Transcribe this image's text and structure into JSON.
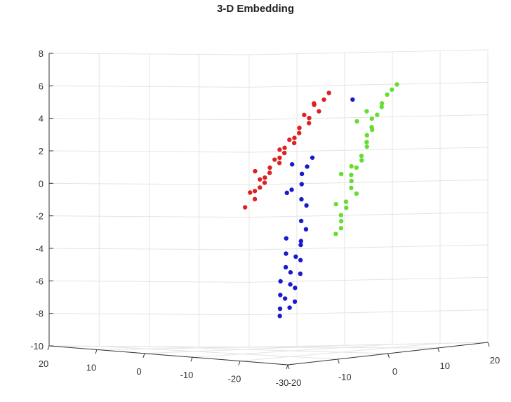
{
  "chart_data": {
    "type": "scatter3d",
    "title": "3-D Embedding",
    "xlabel": "",
    "ylabel": "",
    "zlabel": "",
    "grid": true,
    "xlim": [
      -30,
      20
    ],
    "ylim": [
      -20,
      20
    ],
    "zlim": [
      -10,
      8
    ],
    "x_ticks": [
      "20",
      "10",
      "0",
      "-10",
      "-20",
      "-30"
    ],
    "y_ticks": [
      "-20",
      "-10",
      "0",
      "10",
      "20"
    ],
    "z_ticks": [
      "8",
      "6",
      "4",
      "2",
      "0",
      "-2",
      "-4",
      "-6",
      "-8",
      "-10"
    ],
    "series": [
      {
        "color": "#66dd33",
        "points": [
          [
            -12,
            19,
            6.0
          ],
          [
            -12,
            18,
            5.7
          ],
          [
            -11,
            18,
            5.4
          ],
          [
            -12,
            16,
            4.9
          ],
          [
            -13,
            15,
            4.7
          ],
          [
            -11,
            16,
            4.2
          ],
          [
            -12,
            14,
            4.0
          ],
          [
            -13,
            13,
            3.5
          ],
          [
            -11,
            15,
            3.3
          ],
          [
            -12,
            13,
            3.0
          ],
          [
            -13,
            12,
            2.6
          ],
          [
            -12,
            13,
            2.3
          ],
          [
            -14,
            10,
            1.8
          ],
          [
            -13,
            11,
            1.5
          ],
          [
            -14,
            9,
            1.1
          ],
          [
            -15,
            7,
            0.7
          ],
          [
            -14,
            8,
            0.3
          ],
          [
            -15,
            7,
            -0.1
          ],
          [
            -14,
            9,
            -0.5
          ],
          [
            -16,
            5,
            -0.9
          ],
          [
            -15,
            6,
            -1.3
          ],
          [
            -16,
            4,
            -1.7
          ],
          [
            -15,
            5,
            -2.1
          ],
          [
            -16,
            4,
            -2.5
          ],
          [
            -17,
            2,
            -2.8
          ],
          [
            -16,
            3,
            -1.0
          ],
          [
            -15,
            5,
            0.8
          ],
          [
            -13,
            12,
            4.5
          ],
          [
            -12,
            11,
            3.9
          ],
          [
            -14,
            8,
            1.2
          ]
        ]
      },
      {
        "color": "#1a1acc",
        "points": [
          [
            -9,
            13,
            5.2
          ],
          [
            -10,
            4,
            1.8
          ],
          [
            -11,
            2,
            1.3
          ],
          [
            -12,
            0,
            0.9
          ],
          [
            -11,
            -1,
            1.5
          ],
          [
            -13,
            -1,
            0.3
          ],
          [
            -12,
            -3,
            -0.2
          ],
          [
            -14,
            -2,
            -0.6
          ],
          [
            -13,
            -3,
            0.0
          ],
          [
            -15,
            -3,
            -1.9
          ],
          [
            -16,
            -3,
            -2.4
          ],
          [
            -15,
            -6,
            -2.9
          ],
          [
            -17,
            -5,
            -3.3
          ],
          [
            -16,
            -7,
            -3.8
          ],
          [
            -18,
            -6,
            -4.2
          ],
          [
            -17,
            -8,
            -4.6
          ],
          [
            -19,
            -7,
            -5.0
          ],
          [
            -18,
            -10,
            -5.4
          ],
          [
            -20,
            -9,
            -5.8
          ],
          [
            -19,
            -11,
            -6.2
          ],
          [
            -21,
            -10,
            -6.6
          ],
          [
            -20,
            -12,
            -7.0
          ],
          [
            -21,
            -13,
            -7.4
          ],
          [
            -17,
            -6,
            -4.0
          ],
          [
            -16,
            -4,
            -3.1
          ],
          [
            -18,
            -8,
            -4.9
          ],
          [
            -19,
            -9,
            -5.6
          ],
          [
            -14,
            -1,
            -1.0
          ],
          [
            -20,
            -11,
            -6.4
          ],
          [
            -22,
            -12,
            -6.9
          ]
        ]
      },
      {
        "color": "#dd2222",
        "points": [
          [
            -3,
            14,
            5.6
          ],
          [
            -3,
            13,
            5.2
          ],
          [
            -2,
            12,
            4.9
          ],
          [
            -3,
            12,
            4.5
          ],
          [
            -2,
            11,
            4.1
          ],
          [
            -3,
            10,
            3.8
          ],
          [
            -1,
            10,
            3.5
          ],
          [
            -2,
            9,
            3.2
          ],
          [
            -1,
            9,
            2.9
          ],
          [
            -2,
            8,
            2.6
          ],
          [
            0,
            8,
            2.3
          ],
          [
            -1,
            7,
            2.0
          ],
          [
            0,
            7,
            1.7
          ],
          [
            -1,
            6,
            1.4
          ],
          [
            1,
            6,
            1.1
          ],
          [
            0,
            5,
            0.8
          ],
          [
            1,
            5,
            0.5
          ],
          [
            0,
            4,
            0.2
          ],
          [
            1,
            4,
            -0.1
          ],
          [
            2,
            3,
            -0.4
          ],
          [
            1,
            3,
            -0.8
          ],
          [
            2,
            2,
            -1.3
          ],
          [
            -2,
            10,
            4.3
          ],
          [
            -1,
            8,
            2.8
          ],
          [
            0,
            6,
            1.6
          ],
          [
            1,
            4,
            0.4
          ],
          [
            -3,
            11,
            5.0
          ],
          [
            0,
            7,
            2.2
          ],
          [
            2,
            4,
            0.9
          ],
          [
            1,
            3,
            -0.3
          ]
        ]
      }
    ]
  }
}
